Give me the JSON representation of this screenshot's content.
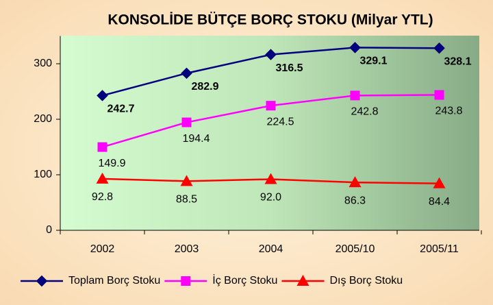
{
  "chart_data": {
    "type": "line",
    "title": "KONSOLİDE BÜTÇE BORÇ STOKU (Milyar YTL)",
    "categories": [
      "2002",
      "2003",
      "2004",
      "2005/10",
      "2005/11"
    ],
    "series": [
      {
        "name": "Toplam Borç Stoku",
        "color": "#000080",
        "marker": "diamond",
        "bold_labels": true,
        "values": [
          242.7,
          282.9,
          316.5,
          329.1,
          328.1
        ]
      },
      {
        "name": "İç Borç Stoku",
        "color": "#ff00ff",
        "marker": "square",
        "values": [
          149.9,
          194.4,
          224.5,
          242.8,
          243.8
        ]
      },
      {
        "name": "Dış Borç Stoku",
        "color": "#ff0000",
        "marker": "triangle",
        "values": [
          92.8,
          88.5,
          92.0,
          86.3,
          84.4
        ],
        "value_labels": [
          "92.8",
          "88.5",
          "92.0",
          "86.3",
          "84.4"
        ]
      }
    ],
    "ylim": [
      0,
      350
    ],
    "yticks": [
      0,
      100,
      200,
      300
    ],
    "legend": "bottom"
  }
}
